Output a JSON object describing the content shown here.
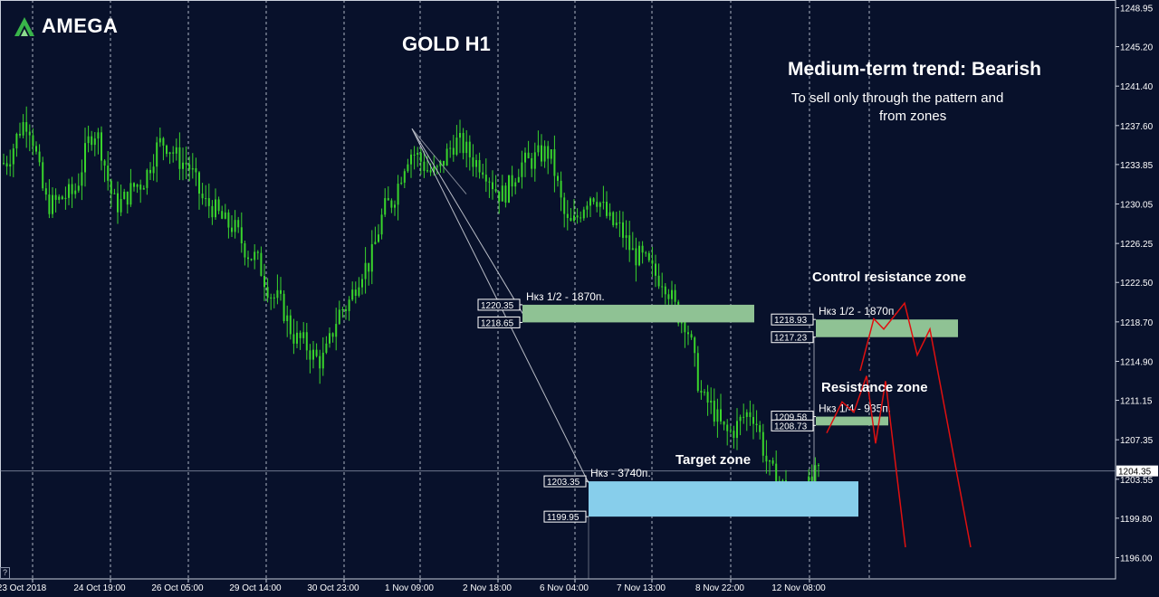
{
  "brand": {
    "name": "AMEGA"
  },
  "colors": {
    "background": "#08112b",
    "candle": "#39d42c",
    "grid": "#c9cfdb",
    "zone_green": "#8fc294",
    "zone_blue": "#87ceeb",
    "forecast": "#e01010",
    "guide": "#b8bcc6"
  },
  "header": {
    "title": "GOLD H1",
    "trend": "Medium-term trend: Bearish",
    "note_line1": "To sell only through the pattern and",
    "note_line2": "from zones"
  },
  "help_glyph": "?",
  "chart_data": {
    "type": "candlestick",
    "symbol": "GOLD",
    "timeframe": "H1",
    "ylim": [
      1195.0,
      1250.0
    ],
    "y_ticks": [
      1248.95,
      1245.2,
      1241.4,
      1237.6,
      1233.85,
      1230.05,
      1226.25,
      1222.5,
      1218.7,
      1214.9,
      1211.15,
      1207.35,
      1203.55,
      1199.8,
      1196.0
    ],
    "x_labels": [
      "23 Oct 2018",
      "24 Oct 19:00",
      "26 Oct 05:00",
      "29 Oct 14:00",
      "30 Oct 23:00",
      "1 Nov 09:00",
      "2 Nov 18:00",
      "6 Nov 04:00",
      "7 Nov 13:00",
      "8 Nov 22:00",
      "12 Nov 08:00"
    ],
    "current_price": "1204.35",
    "price_path": [
      [
        "23 Oct 2018",
        1234
      ],
      [
        "23 Oct",
        1238
      ],
      [
        "23 Oct",
        1230
      ],
      [
        "24 Oct 19:00",
        1231
      ],
      [
        "24 Oct",
        1237
      ],
      [
        "25 Oct",
        1230
      ],
      [
        "25 Oct",
        1232
      ],
      [
        "26 Oct 05:00",
        1236
      ],
      [
        "26 Oct",
        1234
      ],
      [
        "26 Oct",
        1230
      ],
      [
        "29 Oct 14:00",
        1228
      ],
      [
        "29 Oct",
        1225
      ],
      [
        "30 Oct",
        1221
      ],
      [
        "30 Oct",
        1217
      ],
      [
        "30 Oct 23:00",
        1215
      ],
      [
        "31 Oct",
        1220
      ],
      [
        "31 Oct",
        1224
      ],
      [
        "31 Oct",
        1230
      ],
      [
        "1 Nov 09:00",
        1235
      ],
      [
        "1 Nov",
        1233
      ],
      [
        "2 Nov",
        1236
      ],
      [
        "2 Nov 18:00",
        1234
      ],
      [
        "5 Nov",
        1231
      ],
      [
        "5 Nov",
        1234
      ],
      [
        "6 Nov 04:00",
        1235
      ],
      [
        "6 Nov",
        1228
      ],
      [
        "6 Nov",
        1231
      ],
      [
        "7 Nov 13:00",
        1228
      ],
      [
        "7 Nov",
        1225
      ],
      [
        "8 Nov",
        1223
      ],
      [
        "8 Nov 22:00",
        1219
      ],
      [
        "9 Nov",
        1211
      ],
      [
        "9 Nov",
        1208
      ],
      [
        "9 Nov",
        1210
      ],
      [
        "12 Nov",
        1204
      ],
      [
        "12 Nov 08:00",
        1201
      ],
      [
        "12 Nov",
        1204
      ]
    ],
    "zones": [
      {
        "name": "upper-left",
        "label": "Нкз 1/2 - 1870п.",
        "high": "1220.35",
        "low": "1218.65",
        "from_label": "6 Nov 04:00",
        "to_label": "8 Nov 22:00"
      },
      {
        "name": "control-resistance",
        "title": "Control resistance zone",
        "label": "Нкз 1/2 - 1870п.",
        "high": "1218.93",
        "low": "1217.23",
        "from_label": "12 Nov 08:00"
      },
      {
        "name": "resistance",
        "title": "Resistance zone",
        "label": "Нкз 1/4 - 935п.",
        "high": "1209.58",
        "low": "1208.73",
        "from_label": "12 Nov 08:00"
      },
      {
        "name": "target",
        "title": "Target zone",
        "label": "Нкз - 3740п.",
        "high": "1203.35",
        "low": "1199.95",
        "from_label": "6 Nov 04:00",
        "to_label": "12 Nov 08:00"
      }
    ],
    "forecast_paths": [
      [
        [
          0,
          1208.0
        ],
        [
          1,
          1211.0
        ],
        [
          2,
          1210.0
        ],
        [
          3,
          1213.5
        ],
        [
          4,
          1207.0
        ],
        [
          5,
          1213.0
        ],
        [
          6,
          1197.0
        ]
      ],
      [
        [
          0,
          1214.0
        ],
        [
          1,
          1219.0
        ],
        [
          2,
          1218.0
        ],
        [
          3,
          1220.5
        ],
        [
          4,
          1215.5
        ],
        [
          5,
          1218.0
        ],
        [
          6,
          1197.0
        ]
      ]
    ],
    "grid": true
  }
}
